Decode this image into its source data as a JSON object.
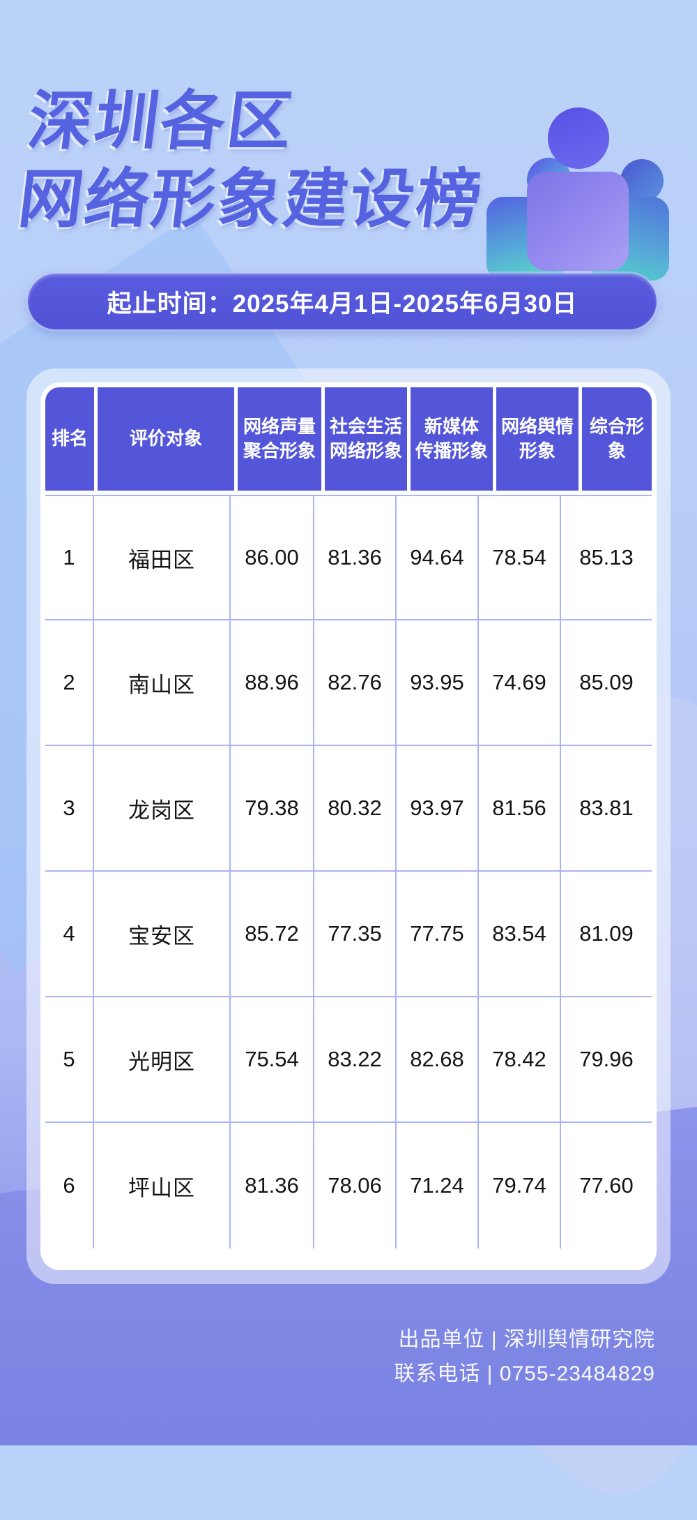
{
  "title": {
    "line1": "深圳各区",
    "line2": "网络形象建设榜"
  },
  "date_bar": {
    "text": "起止时间：2025年4月1日-2025年6月30日"
  },
  "table": {
    "headers": [
      {
        "lines": [
          "排名"
        ]
      },
      {
        "lines": [
          "评价对象"
        ]
      },
      {
        "lines": [
          "网络声量",
          "聚合形象"
        ]
      },
      {
        "lines": [
          "社会生活",
          "网络形象"
        ]
      },
      {
        "lines": [
          "新媒体",
          "传播形象"
        ]
      },
      {
        "lines": [
          "网络舆情",
          "形象"
        ]
      },
      {
        "lines": [
          "综合形象"
        ]
      }
    ],
    "rows": [
      {
        "rank": "1",
        "name": "福田区",
        "values": [
          "86.00",
          "81.36",
          "94.64",
          "78.54",
          "85.13"
        ]
      },
      {
        "rank": "2",
        "name": "南山区",
        "values": [
          "88.96",
          "82.76",
          "93.95",
          "74.69",
          "85.09"
        ]
      },
      {
        "rank": "3",
        "name": "龙岗区",
        "values": [
          "79.38",
          "80.32",
          "93.97",
          "81.56",
          "83.81"
        ]
      },
      {
        "rank": "4",
        "name": "宝安区",
        "values": [
          "85.72",
          "77.35",
          "77.75",
          "83.54",
          "81.09"
        ]
      },
      {
        "rank": "5",
        "name": "光明区",
        "values": [
          "75.54",
          "83.22",
          "82.68",
          "78.42",
          "79.96"
        ]
      },
      {
        "rank": "6",
        "name": "坪山区",
        "values": [
          "81.36",
          "78.06",
          "71.24",
          "79.74",
          "77.60"
        ]
      }
    ]
  },
  "footer": {
    "line1": "出品单位 | 深圳舆情研究院",
    "line2": "联系电话 | 0755-23484829"
  },
  "colors": {
    "header_purple": "#5356d8",
    "date_bar_purple": "#5053d6",
    "title_blue": "#5563e0",
    "grid_line": "#a9b4f2",
    "bg_top": "#bbd2f8",
    "bg_bottom": "#7a82e2"
  },
  "chart_data": {
    "type": "table",
    "title": "深圳各区网络形象建设榜",
    "period": "2025年4月1日-2025年6月30日",
    "columns": [
      "排名",
      "评价对象",
      "网络声量聚合形象",
      "社会生活网络形象",
      "新媒体传播形象",
      "网络舆情形象",
      "综合形象"
    ],
    "rows": [
      [
        1,
        "福田区",
        86.0,
        81.36,
        94.64,
        78.54,
        85.13
      ],
      [
        2,
        "南山区",
        88.96,
        82.76,
        93.95,
        74.69,
        85.09
      ],
      [
        3,
        "龙岗区",
        79.38,
        80.32,
        93.97,
        81.56,
        83.81
      ],
      [
        4,
        "宝安区",
        85.72,
        77.35,
        77.75,
        83.54,
        81.09
      ],
      [
        5,
        "光明区",
        75.54,
        83.22,
        82.68,
        78.42,
        79.96
      ],
      [
        6,
        "坪山区",
        81.36,
        78.06,
        71.24,
        79.74,
        77.6
      ]
    ]
  }
}
